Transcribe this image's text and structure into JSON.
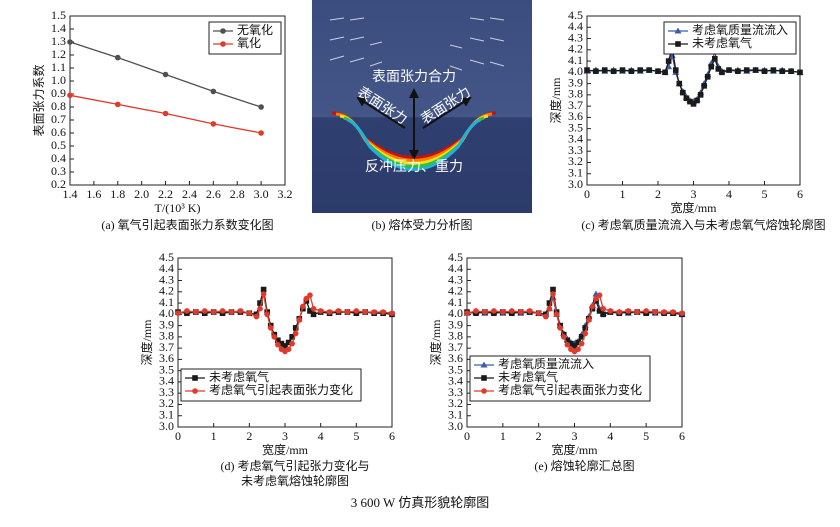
{
  "chart_data": [
    {
      "type": "line",
      "caption": "(a) 氧气引起表面张力系数变化图",
      "xlabel": "T/(10³ K)",
      "ylabel": "表面张力系数",
      "x": [
        1.4,
        1.8,
        2.2,
        2.6,
        3.0
      ],
      "series": [
        {
          "name": "无氧化",
          "color": "#505050",
          "marker": "circle",
          "values": [
            1.3,
            1.18,
            1.05,
            0.92,
            0.8
          ]
        },
        {
          "name": "氧化",
          "color": "#e03a2a",
          "marker": "circle",
          "values": [
            0.89,
            0.82,
            0.75,
            0.67,
            0.6
          ]
        }
      ],
      "xlim": [
        1.4,
        3.2
      ],
      "xticks": [
        1.4,
        1.6,
        1.8,
        {
          "value": 2,
          "label": "2.0"
        },
        2.2,
        2.4,
        2.6,
        2.8,
        {
          "value": 3,
          "label": "3.0"
        },
        3.2
      ],
      "ylim": [
        0.2,
        1.5
      ],
      "yticks": [
        0.2,
        0.3,
        0.4,
        0.5,
        0.6,
        0.7,
        0.8,
        0.9,
        {
          "value": 1,
          "label": "1.0"
        },
        1.1,
        1.2,
        1.3,
        1.4,
        1.5
      ],
      "legend": "upper right"
    },
    {
      "type": "line",
      "caption": "(c) 考虑氧质量流流入与未考虑氧气熔蚀轮廓图",
      "xlabel": "宽度/mm",
      "ylabel": "深度/mm",
      "x": [
        0,
        0.25,
        0.5,
        0.75,
        1,
        1.25,
        1.5,
        1.75,
        2,
        2.2,
        2.3,
        2.4,
        2.5,
        2.6,
        2.7,
        2.8,
        2.9,
        3.0,
        3.1,
        3.2,
        3.3,
        3.4,
        3.5,
        3.6,
        3.7,
        3.8,
        4,
        4.25,
        4.5,
        4.75,
        5,
        5.25,
        5.5,
        5.75,
        6
      ],
      "series": [
        {
          "name": "考虑氧质量流流入",
          "color": "#3a5fa8",
          "marker": "triangle",
          "values": [
            4.01,
            4.02,
            4.01,
            4.02,
            4.01,
            4.02,
            4.01,
            4.02,
            4.01,
            4.0,
            4.05,
            4.15,
            4.0,
            3.9,
            3.83,
            3.78,
            3.75,
            3.74,
            3.76,
            3.82,
            3.9,
            3.98,
            4.08,
            4.18,
            4.05,
            4.01,
            4.02,
            4.02,
            4.01,
            4.02,
            4.02,
            4.01,
            4.02,
            4.01,
            4.0
          ]
        },
        {
          "name": "未考虑氧气",
          "color": "#1a1a1a",
          "marker": "square",
          "values": [
            4.02,
            4.01,
            4.02,
            4.01,
            4.02,
            4.01,
            4.02,
            4.02,
            4.01,
            4.0,
            4.1,
            4.22,
            4.02,
            3.9,
            3.82,
            3.77,
            3.74,
            3.72,
            3.75,
            3.8,
            3.88,
            3.96,
            4.05,
            4.12,
            4.03,
            4.0,
            4.02,
            4.01,
            4.02,
            4.02,
            4.01,
            4.02,
            4.01,
            4.01,
            4.0
          ]
        }
      ],
      "xlim": [
        0,
        6
      ],
      "xticks": [
        0,
        1,
        2,
        3,
        4,
        5,
        6
      ],
      "ylim": [
        3.0,
        4.5
      ],
      "yticks": [
        {
          "value": 3,
          "label": "3.0"
        },
        3.1,
        3.2,
        3.3,
        3.4,
        3.5,
        3.6,
        3.7,
        3.8,
        3.9,
        {
          "value": 4,
          "label": "4.0"
        },
        4.1,
        4.2,
        4.3,
        4.4,
        4.5
      ],
      "legend": "upper right"
    },
    {
      "type": "line",
      "caption": [
        "(d) 考虑氧气引起张力变化与",
        "未考虑氧熔蚀轮廓图"
      ],
      "xlabel": "宽度/mm",
      "ylabel": "深度/mm",
      "x": [
        0,
        0.25,
        0.5,
        0.75,
        1,
        1.25,
        1.5,
        1.75,
        2,
        2.2,
        2.3,
        2.4,
        2.5,
        2.6,
        2.7,
        2.8,
        2.9,
        3.0,
        3.1,
        3.2,
        3.3,
        3.4,
        3.5,
        3.6,
        3.7,
        3.8,
        4,
        4.25,
        4.5,
        4.75,
        5,
        5.25,
        5.5,
        5.75,
        6
      ],
      "series": [
        {
          "name": "未考虑氧气",
          "color": "#1a1a1a",
          "marker": "square",
          "values": [
            4.02,
            4.01,
            4.02,
            4.01,
            4.02,
            4.01,
            4.02,
            4.02,
            4.01,
            4.0,
            4.1,
            4.22,
            4.02,
            3.9,
            3.82,
            3.77,
            3.74,
            3.72,
            3.75,
            3.8,
            3.88,
            3.96,
            4.05,
            4.12,
            4.03,
            4.0,
            4.02,
            4.01,
            4.02,
            4.02,
            4.01,
            4.02,
            4.01,
            4.01,
            4.0
          ]
        },
        {
          "name": "考虑氧气引起表面张力变化",
          "color": "#e03a2a",
          "marker": "circle",
          "values": [
            4.01,
            4.03,
            4.02,
            4.03,
            4.02,
            4.03,
            4.02,
            4.03,
            4.01,
            3.98,
            4.05,
            4.18,
            4.0,
            3.88,
            3.8,
            3.73,
            3.69,
            3.67,
            3.69,
            3.74,
            3.83,
            3.95,
            4.07,
            4.14,
            4.17,
            4.05,
            4.03,
            4.02,
            4.03,
            4.02,
            4.03,
            4.02,
            4.02,
            4.02,
            4.01
          ]
        }
      ],
      "xlim": [
        0,
        6
      ],
      "xticks": [
        0,
        1,
        2,
        3,
        4,
        5,
        6
      ],
      "ylim": [
        3.0,
        4.5
      ],
      "yticks": [
        {
          "value": 3,
          "label": "3.0"
        },
        3.1,
        3.2,
        3.3,
        3.4,
        3.5,
        3.6,
        3.7,
        3.8,
        3.9,
        {
          "value": 4,
          "label": "4.0"
        },
        4.1,
        4.2,
        4.3,
        4.4,
        4.5
      ],
      "legend": "lower left"
    },
    {
      "type": "line",
      "caption": "(e) 熔蚀轮廓汇总图",
      "xlabel": "宽度/mm",
      "ylabel": "深度/mm",
      "x": [
        0,
        0.25,
        0.5,
        0.75,
        1,
        1.25,
        1.5,
        1.75,
        2,
        2.2,
        2.3,
        2.4,
        2.5,
        2.6,
        2.7,
        2.8,
        2.9,
        3.0,
        3.1,
        3.2,
        3.3,
        3.4,
        3.5,
        3.6,
        3.7,
        3.8,
        4,
        4.25,
        4.5,
        4.75,
        5,
        5.25,
        5.5,
        5.75,
        6
      ],
      "series": [
        {
          "name": "考虑氧质量流流入",
          "color": "#3a5fa8",
          "marker": "triangle",
          "values": [
            4.01,
            4.02,
            4.01,
            4.02,
            4.01,
            4.02,
            4.01,
            4.02,
            4.01,
            4.0,
            4.05,
            4.15,
            4.0,
            3.9,
            3.83,
            3.78,
            3.75,
            3.74,
            3.76,
            3.82,
            3.9,
            3.98,
            4.08,
            4.18,
            4.05,
            4.01,
            4.02,
            4.02,
            4.01,
            4.02,
            4.02,
            4.01,
            4.02,
            4.01,
            4.0
          ]
        },
        {
          "name": "未考虑氧气",
          "color": "#1a1a1a",
          "marker": "square",
          "values": [
            4.02,
            4.01,
            4.02,
            4.01,
            4.02,
            4.01,
            4.02,
            4.02,
            4.01,
            4.0,
            4.1,
            4.22,
            4.02,
            3.9,
            3.82,
            3.77,
            3.74,
            3.72,
            3.75,
            3.8,
            3.88,
            3.96,
            4.05,
            4.12,
            4.03,
            4.0,
            4.02,
            4.01,
            4.02,
            4.02,
            4.01,
            4.02,
            4.01,
            4.01,
            4.0
          ]
        },
        {
          "name": "考虑氧气引起表面张力变化",
          "color": "#e03a2a",
          "marker": "circle",
          "values": [
            4.01,
            4.03,
            4.02,
            4.03,
            4.02,
            4.03,
            4.02,
            4.03,
            4.01,
            3.98,
            4.05,
            4.18,
            4.0,
            3.88,
            3.8,
            3.73,
            3.69,
            3.67,
            3.69,
            3.74,
            3.83,
            3.95,
            4.07,
            4.14,
            4.17,
            4.05,
            4.03,
            4.02,
            4.03,
            4.02,
            4.03,
            4.02,
            4.02,
            4.02,
            4.01
          ]
        }
      ],
      "xlim": [
        0,
        6
      ],
      "xticks": [
        0,
        1,
        2,
        3,
        4,
        5,
        6
      ],
      "ylim": [
        3.0,
        4.5
      ],
      "yticks": [
        {
          "value": 3,
          "label": "3.0"
        },
        3.1,
        3.2,
        3.3,
        3.4,
        3.5,
        3.6,
        3.7,
        3.8,
        3.9,
        {
          "value": 4,
          "label": "4.0"
        },
        4.1,
        4.2,
        4.3,
        4.4,
        4.5
      ],
      "legend": "lower left"
    }
  ],
  "panel_b": {
    "caption": "(b) 熔体受力分析图",
    "labels": [
      "表面张力合力",
      "表面张力",
      "表面张力",
      "反冲压力、重力"
    ]
  },
  "figure_caption": "3 600 W 仿真形貌轮廓图"
}
